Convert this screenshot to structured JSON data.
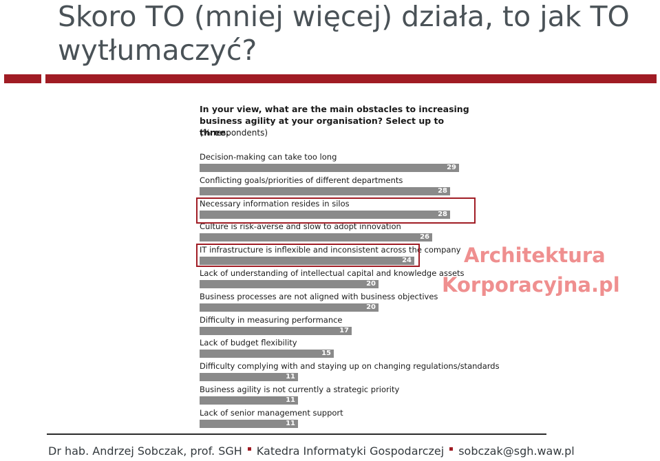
{
  "slide": {
    "title": "Skoro TO (mniej więcej) działa, to jak TO wytłumaczyć?"
  },
  "colors": {
    "accent": "#a01c24",
    "bar": "#8a8a8a",
    "watermark": "#ef8f8f"
  },
  "watermark": {
    "line1": "Architektura",
    "line2": "Korporacyjna.pl"
  },
  "footer": {
    "author": "Dr hab. Andrzej Sobczak, prof. SGH",
    "department": "Katedra Informatyki Gospodarczej",
    "email": "sobczak@sgh.waw.pl"
  },
  "chart_data": {
    "type": "bar",
    "orientation": "horizontal",
    "title": "In your view, what are the main obstacles to increasing business agility at your organisation? Select up to three.",
    "subtitle": "(% respondents)",
    "categories": [
      "Decision-making can take too long",
      "Conflicting goals/priorities of different departments",
      "Necessary information resides in silos",
      "Culture is risk-averse and slow to adopt innovation",
      "IT infrastructure is inflexible and inconsistent across the company",
      "Lack of understanding of intellectual capital and knowledge assets",
      "Business processes are not aligned with business objectives",
      "Difficulty in measuring performance",
      "Lack of budget flexibility",
      "Difficulty complying with and staying up on changing regulations/standards",
      "Business agility is not currently a strategic priority",
      "Lack of senior management support"
    ],
    "values": [
      29,
      28,
      28,
      26,
      24,
      20,
      20,
      17,
      15,
      11,
      11,
      11
    ],
    "highlighted": [
      2,
      4
    ],
    "xlim": [
      0,
      30
    ],
    "grid": false,
    "legend": "none"
  }
}
